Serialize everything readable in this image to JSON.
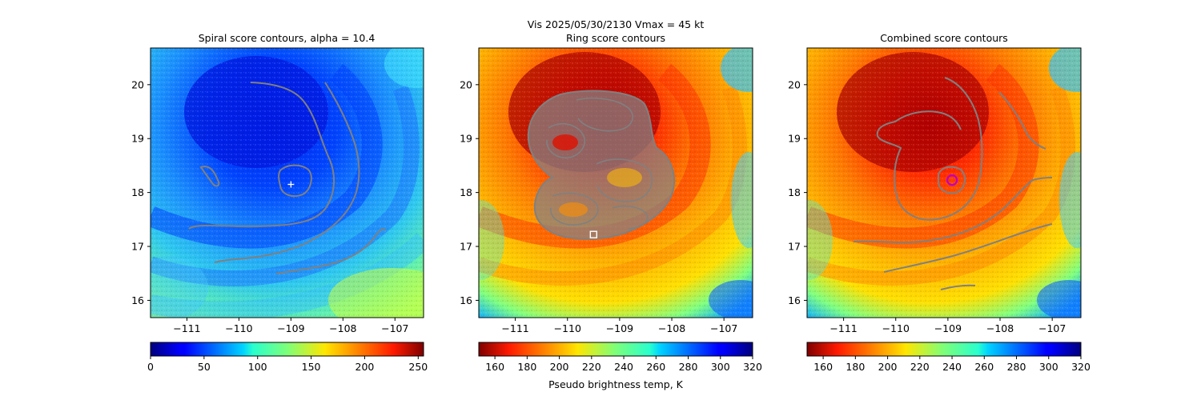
{
  "suptitle_line1": "Vis  2025/05/30/2130    Vmax = 45 kt",
  "chart_data": [
    {
      "type": "heatmap",
      "title": "Spiral score contours, alpha = 10.4",
      "xlim": [
        -111.7,
        -106.45
      ],
      "ylim": [
        15.68,
        20.68
      ],
      "xticks": [
        -111,
        -110,
        -109,
        -108,
        -107
      ],
      "yticks": [
        16,
        17,
        18,
        19,
        20
      ],
      "colormap": "jet",
      "colorbar": {
        "vmin": 0,
        "vmax": 255,
        "ticks": [
          0,
          50,
          100,
          150,
          200,
          250
        ],
        "label": ""
      },
      "marker": {
        "type": "plus",
        "color": "#ffffff",
        "x": -109.0,
        "y": 18.15
      },
      "contour_color": "#808080"
    },
    {
      "type": "heatmap",
      "title": "Ring score contours",
      "xlim": [
        -111.7,
        -106.45
      ],
      "ylim": [
        15.68,
        20.68
      ],
      "xticks": [
        -111,
        -110,
        -109,
        -108,
        -107
      ],
      "yticks": [
        16,
        17,
        18,
        19,
        20
      ],
      "colormap": "jet_r",
      "colorbar": {
        "vmin": 150,
        "vmax": 320,
        "ticks": [
          160,
          180,
          200,
          220,
          240,
          260,
          280,
          300,
          320
        ],
        "label": "Pseudo brightness temp, K"
      },
      "marker": {
        "type": "square",
        "color": "#ffffff",
        "x": -109.5,
        "y": 17.22
      },
      "contour_color": "#808080"
    },
    {
      "type": "heatmap",
      "title": "Combined score contours",
      "xlim": [
        -111.7,
        -106.45
      ],
      "ylim": [
        15.68,
        20.68
      ],
      "xticks": [
        -111,
        -110,
        -109,
        -108,
        -107
      ],
      "yticks": [
        16,
        17,
        18,
        19,
        20
      ],
      "colormap": "jet_r",
      "colorbar": {
        "vmin": 150,
        "vmax": 320,
        "ticks": [
          160,
          180,
          200,
          220,
          240,
          260,
          280,
          300,
          320
        ],
        "label": ""
      },
      "marker": {
        "type": "circle",
        "color": "#c000c0",
        "x": -108.92,
        "y": 18.23
      },
      "contour_color": "#808080"
    }
  ]
}
